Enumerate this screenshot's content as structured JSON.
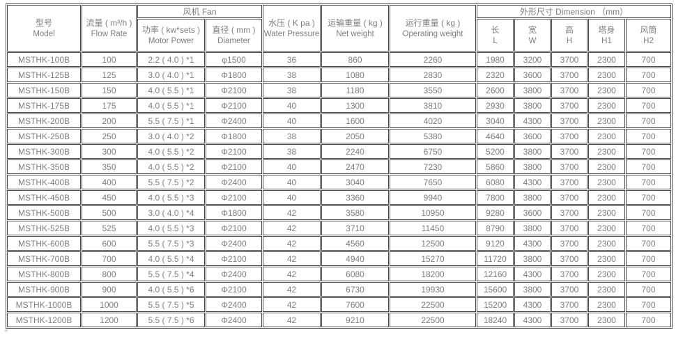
{
  "colors": {
    "border": "#4b4b4b",
    "text": "#7d7d7d",
    "background": "#ffffff"
  },
  "table": {
    "column_keys": [
      "model",
      "flow_rate",
      "motor_power",
      "diameter",
      "water_pressure",
      "net_weight",
      "operating_weight",
      "length_l",
      "width_w",
      "height_h",
      "tower_h1",
      "fan_cylinder_h2"
    ],
    "header": {
      "model": {
        "zh": "型号",
        "en": "Model"
      },
      "flow_rate": {
        "zh": "流量 ( m³/h )",
        "en": "Flow Rate"
      },
      "fan_group": "风机 Fan",
      "motor_power": {
        "zh": "功率 ( kw*sets )",
        "en": "Motor Power"
      },
      "diameter": {
        "zh": "直径 ( mm )",
        "en": "Diameter"
      },
      "water_pressure": {
        "zh": "水压 ( K pa )",
        "en": "Water Pressure"
      },
      "net_weight": {
        "zh": "运输重量 ( kg )",
        "en": "Net weight"
      },
      "operating_weight": {
        "zh": "运行重量 ( kg )",
        "en": "Operating weight"
      },
      "dimension_group": "外形尺寸 Dimension （mm）",
      "dims": [
        {
          "zh": "长",
          "en": "L"
        },
        {
          "zh": "宽",
          "en": "W"
        },
        {
          "zh": "高",
          "en": "H"
        },
        {
          "zh": "塔身",
          "en": "H1"
        },
        {
          "zh": "风筒",
          "en": "H2"
        }
      ]
    },
    "rows": [
      [
        "MSTHK-100B",
        "100",
        "2.2 ( 4.0 ) *1",
        "φ1500",
        "36",
        "860",
        "2260",
        "1980",
        "3200",
        "3700",
        "2300",
        "700"
      ],
      [
        "MSTHK-125B",
        "125",
        "3.0 ( 4.0 ) *1",
        "Φ1800",
        "38",
        "1080",
        "2830",
        "2320",
        "3600",
        "3700",
        "2300",
        "700"
      ],
      [
        "MSTHK-150B",
        "150",
        "4.0 ( 5.5 ) *1",
        "Φ2100",
        "38",
        "1180",
        "3550",
        "2600",
        "3800",
        "3700",
        "2300",
        "700"
      ],
      [
        "MSTHK-175B",
        "175",
        "4.0 ( 5.5 ) *1",
        "Φ2100",
        "40",
        "1300",
        "3810",
        "2930",
        "3800",
        "3700",
        "2300",
        "700"
      ],
      [
        "MSTHK-200B",
        "200",
        "5.5 ( 7.5 ) *1",
        "Φ2400",
        "40",
        "1600",
        "4020",
        "3040",
        "4300",
        "3700",
        "2300",
        "700"
      ],
      [
        "MSTHK-250B",
        "250",
        "3.0 ( 4.0 ) *2",
        "Φ1800",
        "38",
        "2050",
        "5380",
        "4640",
        "3600",
        "3700",
        "2300",
        "700"
      ],
      [
        "MSTHK-300B",
        "300",
        "4.0 ( 5.5 ) *2",
        "Φ2100",
        "38",
        "2240",
        "6750",
        "5200",
        "3800",
        "3700",
        "2300",
        "700"
      ],
      [
        "MSTHK-350B",
        "350",
        "4.0 ( 5.5 ) *2",
        "Φ2100",
        "40",
        "2470",
        "7230",
        "5860",
        "3800",
        "3700",
        "2300",
        "700"
      ],
      [
        "MSTHK-400B",
        "400",
        "5.5 ( 7.5 ) *2",
        "Φ2400",
        "40",
        "3040",
        "7650",
        "6080",
        "4300",
        "3700",
        "2300",
        "700"
      ],
      [
        "MSTHK-450B",
        "450",
        "4.0 ( 5.5 ) *3",
        "Φ2100",
        "40",
        "3360",
        "9940",
        "7800",
        "3800",
        "3700",
        "2300",
        "700"
      ],
      [
        "MSTHK-500B",
        "500",
        "3.0 ( 4.0 ) *4",
        "Φ1800",
        "42",
        "3580",
        "10950",
        "9280",
        "3600",
        "3700",
        "2300",
        "700"
      ],
      [
        "MSTHK-525B",
        "525",
        "4.0 ( 5.5 ) *3",
        "Φ2100",
        "42",
        "3710",
        "11450",
        "8790",
        "3800",
        "3700",
        "2300",
        "700"
      ],
      [
        "MSTHK-600B",
        "600",
        "5.5 ( 7.5 ) *3",
        "Φ2400",
        "42",
        "4560",
        "12500",
        "9120",
        "4300",
        "3700",
        "2300",
        "700"
      ],
      [
        "MSTHK-700B",
        "700",
        "4.0 ( 5.5 ) *4",
        "Φ2100",
        "42",
        "4940",
        "15270",
        "11720",
        "3800",
        "3700",
        "2300",
        "700"
      ],
      [
        "MSTHK-800B",
        "800",
        "5.5 ( 7.5 ) *4",
        "Φ2400",
        "42",
        "6080",
        "18200",
        "12160",
        "4300",
        "3700",
        "2300",
        "700"
      ],
      [
        "MSTHK-900B",
        "900",
        "4.0 ( 5.5 ) *6",
        "Φ2100",
        "42",
        "6730",
        "19930",
        "15600",
        "3800",
        "3700",
        "2300",
        "700"
      ],
      [
        "MSTHK-1000B",
        "1000",
        "5.5 ( 7.5 ) *5",
        "Φ2400",
        "42",
        "7600",
        "22500",
        "15200",
        "4300",
        "3700",
        "2300",
        "700"
      ],
      [
        "MSTHK-1200B",
        "1200",
        "5.5 ( 7.5 ) *6",
        "Φ2400",
        "42",
        "9210",
        "22500",
        "18240",
        "4300",
        "3700",
        "2300",
        "700"
      ]
    ]
  },
  "footnote_mark": "″"
}
